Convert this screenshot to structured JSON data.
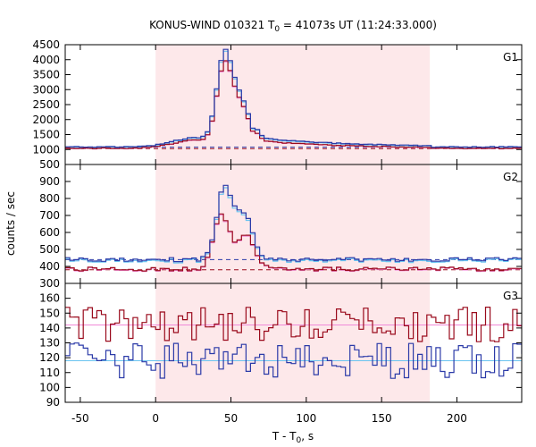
{
  "chart_data": {
    "type": "line",
    "title": "KONUS-WIND 010321 T",
    "title_sub": "0",
    "title_rest": " = 41073s UT (11:24:33.000)",
    "xlabel": "T - T",
    "xlabel_sub": "0",
    "xlabel_rest": ", s",
    "ylabel": "counts / sec",
    "xlim": [
      -60,
      243
    ],
    "xticks": [
      "-50",
      "0",
      "50",
      "100",
      "150",
      "200"
    ],
    "xtick_values": [
      -50,
      0,
      50,
      100,
      150,
      200
    ],
    "highlight_interval": [
      0,
      182
    ],
    "colors": {
      "highlight": "#fde8ea",
      "red_series": "#9a0a1c",
      "blue_series": "#2b3aa8",
      "light_blue": "#6ac4f0",
      "pink": "#f08ad8",
      "red_bg": "#9a0a1c",
      "blue_bg": "#2b3aa8"
    },
    "panels": [
      {
        "name": "G1",
        "ylim": [
          500,
          4500
        ],
        "yticks": [
          "500",
          "1000",
          "1500",
          "2000",
          "2500",
          "3000",
          "3500",
          "4000",
          "4500"
        ],
        "ytick_values": [
          500,
          1000,
          1500,
          2000,
          2500,
          3000,
          3500,
          4000,
          4500
        ],
        "background_red": 1030,
        "background_blue": 1080,
        "profile": {
          "base_red": 1040,
          "base_blue": 1090,
          "peak_red": 3900,
          "peak_blue": 4150,
          "noise": 30,
          "peaks": [
            [
              44,
              2800,
              5
            ],
            [
              55,
              1500,
              6
            ],
            [
              25,
              300,
              15
            ]
          ],
          "tail_red": 250,
          "tail_blue": 300
        }
      },
      {
        "name": "G2",
        "ylim": [
          300,
          1000
        ],
        "yticks": [
          "300",
          "400",
          "500",
          "600",
          "700",
          "800",
          "900"
        ],
        "ytick_values": [
          300,
          400,
          500,
          600,
          700,
          800,
          900
        ],
        "background_red": 380,
        "background_blue": 440,
        "profile": {
          "base_red": 385,
          "base_blue": 440,
          "noise": 12,
          "peaks_red": [
            [
              42,
              330,
              5
            ],
            [
              58,
              200,
              6
            ]
          ],
          "peaks_blue": [
            [
              44,
              420,
              5
            ],
            [
              57,
              260,
              6
            ]
          ]
        }
      },
      {
        "name": "G3",
        "ylim": [
          90,
          170
        ],
        "yticks": [
          "90",
          "100",
          "110",
          "120",
          "130",
          "140",
          "150",
          "160"
        ],
        "ytick_values": [
          90,
          100,
          110,
          120,
          130,
          140,
          150,
          160
        ],
        "background_red": 142,
        "background_blue": 118,
        "profile": {
          "base_red": 142,
          "base_blue": 118,
          "noise": 10
        }
      }
    ]
  }
}
